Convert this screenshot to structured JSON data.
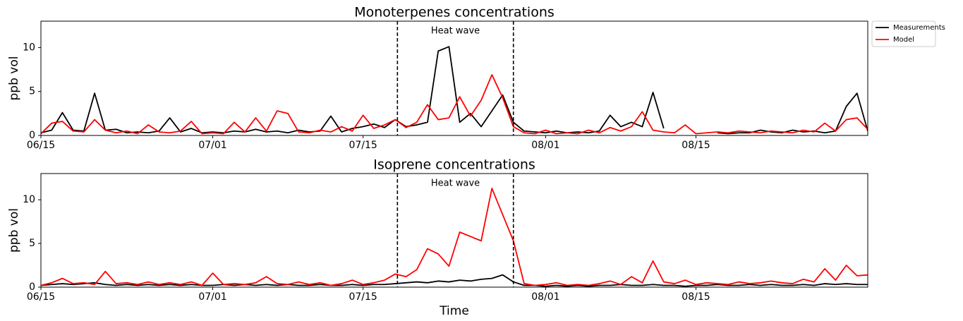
{
  "chart_data": [
    {
      "type": "line",
      "title": "Monoterpenes concentrations",
      "y_label": "ppb vol",
      "x": [
        0,
        1,
        2,
        3,
        4,
        5,
        6,
        7,
        8,
        9,
        10,
        11,
        12,
        13,
        14,
        15,
        16,
        17,
        18,
        19,
        20,
        21,
        22,
        23,
        24,
        25,
        26,
        27,
        28,
        29,
        30,
        31,
        32,
        33,
        34,
        35,
        36,
        37,
        38,
        39,
        40,
        41,
        42,
        43,
        44,
        45,
        46,
        47,
        48,
        49,
        50,
        51,
        52,
        53,
        54,
        55,
        56,
        57,
        58,
        59,
        60,
        61,
        62,
        63,
        64,
        65,
        66,
        67,
        68,
        69,
        70,
        71,
        72,
        73,
        74,
        75,
        76,
        77
      ],
      "series": [
        {
          "name": "Measurements",
          "color": "#000000",
          "values": [
            0.3,
            0.6,
            2.6,
            0.6,
            0.5,
            4.8,
            0.6,
            0.7,
            0.3,
            0.4,
            0.3,
            0.5,
            2.0,
            0.4,
            0.8,
            0.3,
            0.4,
            0.3,
            0.5,
            0.4,
            0.7,
            0.4,
            0.5,
            0.3,
            0.6,
            0.4,
            0.5,
            2.2,
            0.4,
            0.8,
            1.0,
            1.3,
            0.9,
            1.8,
            1.0,
            1.2,
            1.5,
            9.6,
            10.1,
            1.5,
            2.5,
            1.0,
            2.8,
            4.6,
            1.5,
            0.5,
            0.4,
            0.3,
            0.5,
            0.3,
            0.4,
            0.3,
            0.5,
            2.3,
            1.0,
            1.5,
            1.0,
            4.9,
            0.8,
            null,
            null,
            null,
            null,
            0.3,
            0.2,
            0.3,
            0.3,
            0.6,
            0.4,
            0.3,
            0.6,
            0.4,
            0.5,
            0.3,
            0.5,
            3.3,
            4.8,
            0.5
          ]
        },
        {
          "name": "Model",
          "color": "#ff0000",
          "values": [
            0.2,
            1.4,
            1.6,
            0.5,
            0.4,
            1.8,
            0.6,
            0.3,
            0.5,
            0.2,
            1.2,
            0.4,
            0.3,
            0.5,
            1.6,
            0.2,
            0.3,
            0.2,
            1.5,
            0.4,
            2.0,
            0.5,
            2.8,
            2.5,
            0.4,
            0.3,
            0.6,
            0.4,
            1.0,
            0.5,
            2.3,
            0.8,
            1.2,
            1.8,
            0.9,
            1.5,
            3.5,
            1.8,
            2.0,
            4.4,
            2.2,
            4.0,
            6.9,
            4.3,
            1.0,
            0.3,
            0.2,
            0.6,
            0.2,
            0.3,
            0.2,
            0.6,
            0.3,
            0.9,
            0.5,
            1.0,
            2.7,
            0.6,
            0.4,
            0.3,
            1.2,
            0.2,
            0.3,
            0.4,
            0.3,
            0.5,
            0.4,
            0.3,
            0.5,
            0.4,
            0.3,
            0.6,
            0.4,
            1.4,
            0.5,
            1.8,
            2.0,
            0.7
          ]
        }
      ],
      "xlim": [
        0,
        77
      ],
      "ylim": [
        0,
        13
      ],
      "xticks": [
        {
          "value": 0,
          "label": "06/15"
        },
        {
          "value": 16,
          "label": "07/01"
        },
        {
          "value": 30,
          "label": "07/15"
        },
        {
          "value": 47,
          "label": "08/01"
        },
        {
          "value": 61,
          "label": "08/15"
        }
      ],
      "yticks": [
        0,
        5,
        10
      ],
      "vlines": [
        33.2,
        44
      ],
      "annotation": "Heat wave",
      "legend": "outside upper right"
    },
    {
      "type": "line",
      "title": "Isoprene concentrations",
      "y_label": "ppb vol",
      "x_label": "Time",
      "x": [
        0,
        1,
        2,
        3,
        4,
        5,
        6,
        7,
        8,
        9,
        10,
        11,
        12,
        13,
        14,
        15,
        16,
        17,
        18,
        19,
        20,
        21,
        22,
        23,
        24,
        25,
        26,
        27,
        28,
        29,
        30,
        31,
        32,
        33,
        34,
        35,
        36,
        37,
        38,
        39,
        40,
        41,
        42,
        43,
        44,
        45,
        46,
        47,
        48,
        49,
        50,
        51,
        52,
        53,
        54,
        55,
        56,
        57,
        58,
        59,
        60,
        61,
        62,
        63,
        64,
        65,
        66,
        67,
        68,
        69,
        70,
        71,
        72,
        73,
        74,
        75,
        76,
        77
      ],
      "series": [
        {
          "color": "#000000",
          "values": [
            0.2,
            0.3,
            0.4,
            0.3,
            0.4,
            0.5,
            0.3,
            0.2,
            0.3,
            0.2,
            0.3,
            0.2,
            0.3,
            0.2,
            0.3,
            0.2,
            0.2,
            0.3,
            0.2,
            0.3,
            0.2,
            0.3,
            0.2,
            0.3,
            0.2,
            0.2,
            0.3,
            0.2,
            0.2,
            0.3,
            0.2,
            0.3,
            0.3,
            0.4,
            0.5,
            0.6,
            0.5,
            0.7,
            0.6,
            0.8,
            0.7,
            0.9,
            1.0,
            1.4,
            0.6,
            0.2,
            0.2,
            0.1,
            0.2,
            0.1,
            0.2,
            0.1,
            0.2,
            0.2,
            0.3,
            0.2,
            0.2,
            0.3,
            0.2,
            0.2,
            0.1,
            0.2,
            0.2,
            0.3,
            0.2,
            0.2,
            0.3,
            0.2,
            0.3,
            0.2,
            0.2,
            0.3,
            0.2,
            0.4,
            0.3,
            0.4,
            0.3,
            0.3
          ]
        },
        {
          "color": "#ff0000",
          "values": [
            0.2,
            0.5,
            1.0,
            0.4,
            0.5,
            0.3,
            1.8,
            0.4,
            0.5,
            0.3,
            0.6,
            0.3,
            0.5,
            0.3,
            0.6,
            0.2,
            1.6,
            0.3,
            0.4,
            0.3,
            0.5,
            1.2,
            0.4,
            0.3,
            0.6,
            0.3,
            0.5,
            0.2,
            0.4,
            0.8,
            0.3,
            0.5,
            0.8,
            1.5,
            1.2,
            2.0,
            4.4,
            3.8,
            2.4,
            6.3,
            5.8,
            5.3,
            11.3,
            8.3,
            5.3,
            0.4,
            0.2,
            0.3,
            0.5,
            0.2,
            0.3,
            0.2,
            0.4,
            0.7,
            0.3,
            1.2,
            0.5,
            3.0,
            0.6,
            0.4,
            0.8,
            0.3,
            0.5,
            0.4,
            0.3,
            0.6,
            0.4,
            0.5,
            0.7,
            0.5,
            0.4,
            0.9,
            0.6,
            2.1,
            0.8,
            2.5,
            1.3,
            1.4
          ]
        }
      ],
      "xlim": [
        0,
        77
      ],
      "ylim": [
        0,
        13
      ],
      "xticks": [
        {
          "value": 0,
          "label": "06/15"
        },
        {
          "value": 16,
          "label": "07/01"
        },
        {
          "value": 30,
          "label": "07/15"
        },
        {
          "value": 47,
          "label": "08/01"
        },
        {
          "value": 61,
          "label": "08/15"
        }
      ],
      "yticks": [
        0,
        5,
        10
      ],
      "vlines": [
        33.2,
        44
      ],
      "annotation": "Heat wave"
    }
  ]
}
